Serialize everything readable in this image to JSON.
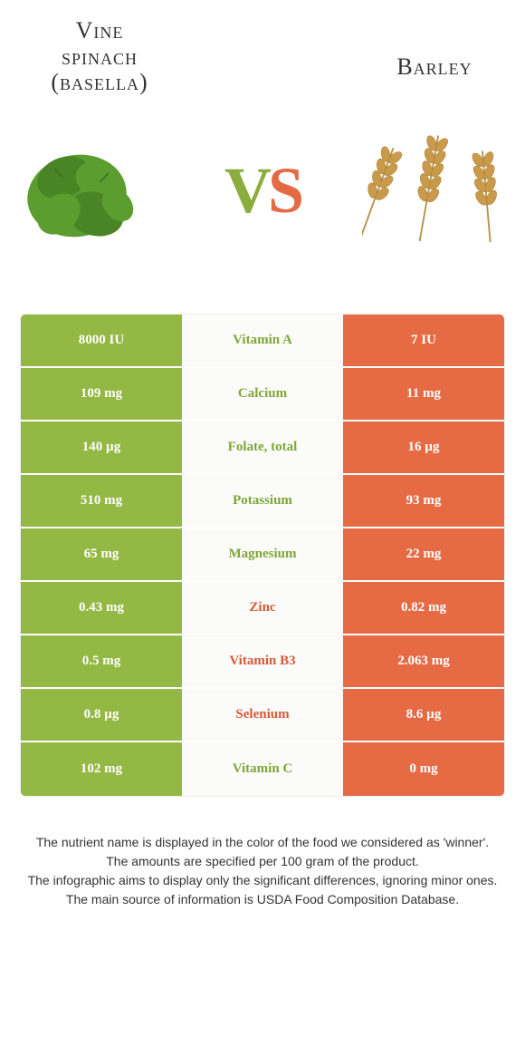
{
  "header": {
    "left_title_line1": "Vine",
    "left_title_line2": "spinach",
    "left_title_line3": "(basella)",
    "right_title": "Barley",
    "vs_v": "V",
    "vs_s": "S"
  },
  "colors": {
    "green": "#93b843",
    "orange": "#e66b45",
    "green_text": "#7fa636",
    "orange_text": "#d85a36",
    "mid_bg": "#fbfbfa"
  },
  "rows": [
    {
      "left": "8000 IU",
      "nutrient": "Vitamin A",
      "right": "7 IU",
      "winner": "left"
    },
    {
      "left": "109 mg",
      "nutrient": "Calcium",
      "right": "11 mg",
      "winner": "left"
    },
    {
      "left": "140 µg",
      "nutrient": "Folate, total",
      "right": "16 µg",
      "winner": "left"
    },
    {
      "left": "510 mg",
      "nutrient": "Potassium",
      "right": "93 mg",
      "winner": "left"
    },
    {
      "left": "65 mg",
      "nutrient": "Magnesium",
      "right": "22 mg",
      "winner": "left"
    },
    {
      "left": "0.43 mg",
      "nutrient": "Zinc",
      "right": "0.82 mg",
      "winner": "right"
    },
    {
      "left": "0.5 mg",
      "nutrient": "Vitamin B3",
      "right": "2.063 mg",
      "winner": "right"
    },
    {
      "left": "0.8 µg",
      "nutrient": "Selenium",
      "right": "8.6 µg",
      "winner": "right"
    },
    {
      "left": "102 mg",
      "nutrient": "Vitamin C",
      "right": "0 mg",
      "winner": "left"
    }
  ],
  "footnote": {
    "line1": "The nutrient name is displayed in the color of the food we considered as 'winner'.",
    "line2": "The amounts are specified per 100 gram of the product.",
    "line3": "The infographic aims to display only the significant differences, ignoring minor ones.",
    "line4": "The main source of information is USDA Food Composition Database."
  }
}
